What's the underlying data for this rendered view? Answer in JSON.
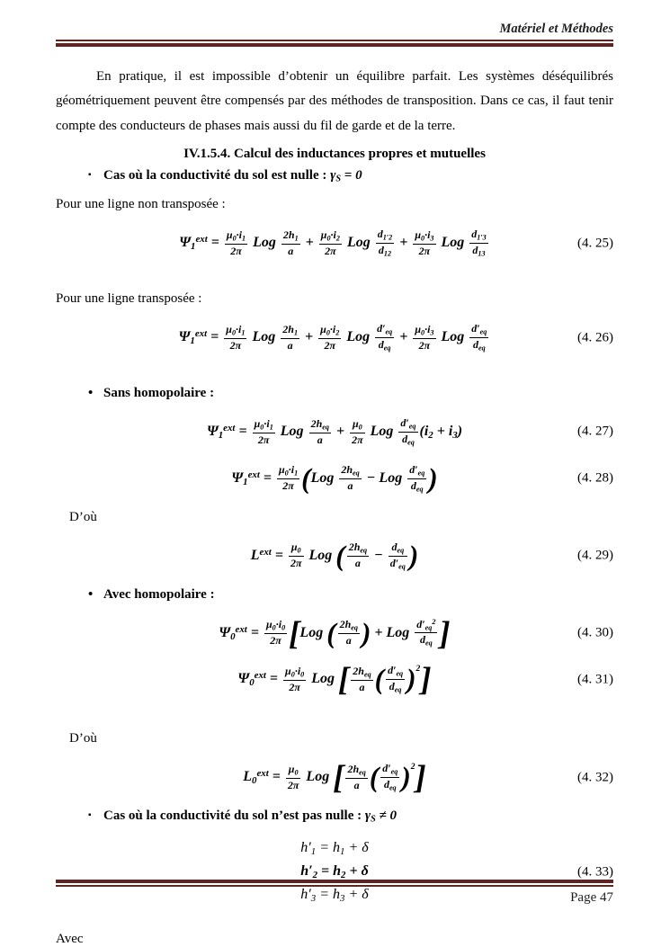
{
  "header": {
    "title": "Matériel et Méthodes"
  },
  "footer": {
    "page_label": "Page 47"
  },
  "colors": {
    "rule": "#5d2625",
    "text": "#000000"
  },
  "content": {
    "paragraph": "En pratique, il est impossible d’obtenir un équilibre parfait. Les systèmes déséquilibrés géométriquement peuvent être compensés par des méthodes de transposition. Dans ce cas, il faut tenir compte des conducteurs de phases mais aussi du fil de garde et de la terre.",
    "section_heading": "IV.1.5.4. Calcul des inductances propres et mutuelles",
    "bullets": {
      "sol_nulle": {
        "marker": "▪",
        "label": "Cas où la conductivité du sol est nulle : ",
        "math_html": "γ<sub>S</sub> = 0"
      },
      "sans_homopolaire": {
        "marker": "•",
        "label": "Sans homopolaire :"
      },
      "avec_homopolaire": {
        "marker": "•",
        "label": "Avec homopolaire :"
      },
      "sol_non_nulle": {
        "marker": "▪",
        "label": "Cas où la conductivité du sol n’est pas nulle : ",
        "math_html": "γ<sub>S</sub> ≠ 0"
      }
    },
    "lead_non_transposee": "Pour une ligne non transposée :",
    "lead_transposee": "Pour une ligne transposée :",
    "dou_1": "D’où",
    "dou_2": "D’où",
    "avec": "Avec"
  },
  "equations": {
    "eq25": {
      "number": "(4. 25)",
      "math_html": "Ψ<sub>1</sub><sup>ext</sup> = <span class='f'><span class='n'>μ<sub>0</sub>·i<sub>1</sub></span><span class='d'>2π</span></span> Log <span class='f'><span class='n'>2h<sub>1</sub></span><span class='d'>a</span></span> + <span class='f'><span class='n'>μ<sub>0</sub>·i<sub>2</sub></span><span class='d'>2π</span></span> Log <span class='f'><span class='n'>d<sub>1′2</sub></span><span class='d'>d<sub>12</sub></span></span> + <span class='f'><span class='n'>μ<sub>0</sub>·i<sub>3</sub></span><span class='d'>2π</span></span> Log <span class='f'><span class='n'>d<sub>1′3</sub></span><span class='d'>d<sub>13</sub></span></span>"
    },
    "eq26": {
      "number": "(4. 26)",
      "math_html": "Ψ<sub>1</sub><sup>ext</sup> = <span class='f'><span class='n'>μ<sub>0</sub>·i<sub>1</sub></span><span class='d'>2π</span></span> Log <span class='f'><span class='n'>2h<sub>1</sub></span><span class='d'>a</span></span> + <span class='f'><span class='n'>μ<sub>0</sub>·i<sub>2</sub></span><span class='d'>2π</span></span> Log <span class='f'><span class='n'>d′<sub>eq</sub></span><span class='d'>d<sub>eq</sub></span></span> + <span class='f'><span class='n'>μ<sub>0</sub>·i<sub>3</sub></span><span class='d'>2π</span></span> Log <span class='f'><span class='n'>d′<sub>eq</sub></span><span class='d'>d<sub>eq</sub></span></span>"
    },
    "eq27": {
      "number": "(4. 27)",
      "math_html": "Ψ<sub>1</sub><sup>ext</sup> = <span class='f'><span class='n'>μ<sub>0</sub>·i<sub>1</sub></span><span class='d'>2π</span></span> Log <span class='f'><span class='n'>2h<sub>eq</sub></span><span class='d'>a</span></span> + <span class='f'><span class='n'>μ<sub>0</sub></span><span class='d'>2π</span></span> Log <span class='f'><span class='n'>d′<sub>eq</sub></span><span class='d'>d<sub>eq</sub></span></span>(i<sub>2</sub> + i<sub>3</sub>)"
    },
    "eq28": {
      "number": "(4. 28)",
      "math_html": "Ψ<sub>1</sub><sup>ext</sup> = <span class='f'><span class='n'>μ<sub>0</sub>·i<sub>1</sub></span><span class='d'>2π</span></span><span class='bp'>(</span>Log <span class='f'><span class='n'>2h<sub>eq</sub></span><span class='d'>a</span></span> − Log <span class='f'><span class='n'>d′<sub>eq</sub></span><span class='d'>d<sub>eq</sub></span></span><span class='bp'>)</span>"
    },
    "eq29": {
      "number": "(4. 29)",
      "math_html": "L<sup>ext</sup> = <span class='f'><span class='n'>μ<sub>0</sub></span><span class='d'>2π</span></span> Log <span class='bp'>(</span><span class='f'><span class='n'>2h<sub>eq</sub></span><span class='d'>a</span></span> − <span class='f'><span class='n'>d<sub>eq</sub></span><span class='d'>d′<sub>eq</sub></span></span><span class='bp'>)</span>"
    },
    "eq30": {
      "number": "(4. 30)",
      "math_html": "Ψ<sub>0</sub><sup>ext</sup> = <span class='f'><span class='n'>μ<sub>0</sub>·i<sub>0</sub></span><span class='d'>2π</span></span><span class='bk'>[</span>Log <span class='bp'>(</span><span class='f'><span class='n'>2h<sub>eq</sub></span><span class='d'>a</span></span><span class='bp'>)</span> + Log <span class='f'><span class='n'>d′<sub>eq</sub><sup>2</sup></span><span class='d'>d<sub>eq</sub></span></span><span class='bk'>]</span>"
    },
    "eq31": {
      "number": "(4. 31)",
      "math_html": "Ψ<sub>0</sub><sup>ext</sup> = <span class='f'><span class='n'>μ<sub>0</sub>·i<sub>0</sub></span><span class='d'>2π</span></span> Log <span class='bk'>[</span><span class='f'><span class='n'>2h<sub>eq</sub></span><span class='d'>a</span></span><span class='bp'>(</span><span class='f'><span class='n'>d′<sub>eq</sub></span><span class='d'>d<sub>eq</sub></span></span><span class='bp'>)</span><sup class='s2'>2</sup><span class='bk'>]</span>"
    },
    "eq32": {
      "number": "(4. 32)",
      "math_html": "L<sub>0</sub><sup>ext</sup> = <span class='f'><span class='n'>μ<sub>0</sub></span><span class='d'>2π</span></span> Log <span class='bk'>[</span><span class='f'><span class='n'>2h<sub>eq</sub></span><span class='d'>a</span></span><span class='bp'>(</span><span class='f'><span class='n'>d′<sub>eq</sub></span><span class='d'>d<sub>eq</sub></span></span><span class='bp'>)</span><sup class='s2'>2</sup><span class='bk'>]</span>"
    },
    "eq33": {
      "number": "(4. 33)",
      "line1_html": "h′<sub>1</sub> = h<sub>1</sub> + δ",
      "line2_html": "h′<sub>2</sub> = h<sub>2</sub> + δ",
      "line3_html": "h′<sub>3</sub> = h<sub>3</sub> + δ"
    }
  }
}
